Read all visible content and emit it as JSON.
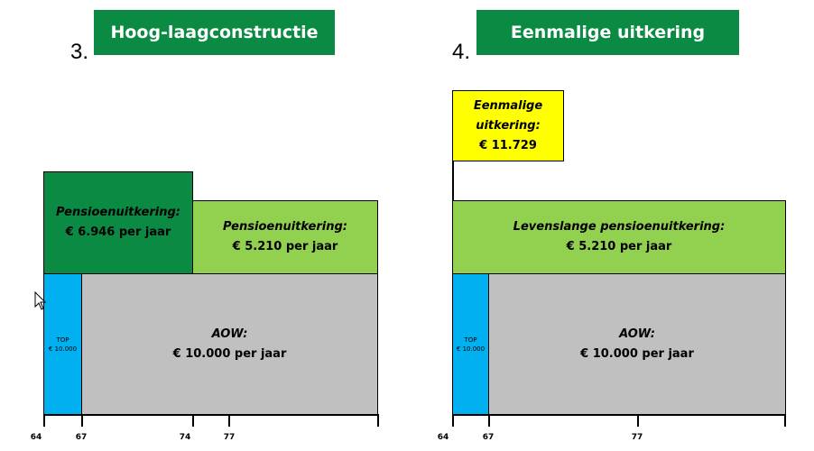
{
  "panel3": {
    "number": "3.",
    "title": "Hoog-laagconstructie",
    "high_pension": {
      "label": "Pensioenuitkering:",
      "value": "€ 6.946 per jaar",
      "amount_per_year": 6946
    },
    "low_pension": {
      "label": "Pensioenuitkering:",
      "value": "€ 5.210 per jaar",
      "amount_per_year": 5210
    },
    "aow": {
      "label": "AOW:",
      "value": "€ 10.000 per jaar",
      "amount_per_year": 10000
    },
    "top": {
      "label": "TOP",
      "value": "€ 10.000"
    },
    "ticks": [
      "64",
      "67",
      "74",
      "77"
    ]
  },
  "panel4": {
    "number": "4.",
    "title": "Eenmalige uitkering",
    "lump_sum": {
      "label": "Eenmalige uitkering:",
      "value": "€ 11.729",
      "amount": 11729
    },
    "pension": {
      "label": "Levenslange pensioenuitkering:",
      "value": "€ 5.210 per jaar",
      "amount_per_year": 5210
    },
    "aow": {
      "label": "AOW:",
      "value": "€ 10.000 per jaar",
      "amount_per_year": 10000
    },
    "top": {
      "label": "TOP",
      "value": "€ 10.000"
    },
    "ticks": [
      "64",
      "67",
      "77"
    ]
  },
  "colors": {
    "banner": "#0a8a43",
    "pension_high": "#0a8a43",
    "pension": "#92d050",
    "aow": "#c0c0c0",
    "top": "#00b0f0",
    "lump_sum": "#ffff00"
  }
}
